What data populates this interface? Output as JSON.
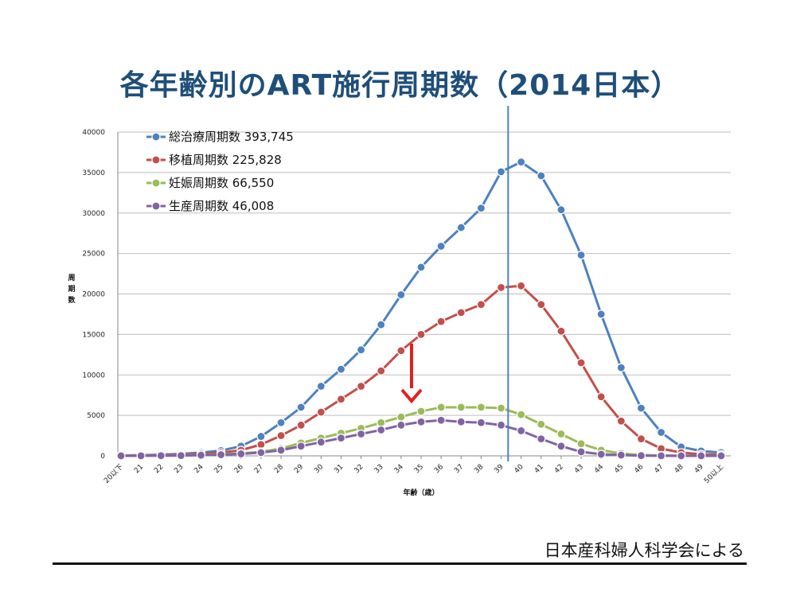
{
  "page": {
    "source": "日本産科婦人科学会による"
  },
  "chart_data": {
    "type": "line",
    "title": "各年齢別のART施行周期数（2014日本）",
    "xlabel": "年齢（歳）",
    "ylabel": "周期数",
    "ylim": [
      0,
      40000
    ],
    "yticks": [
      0,
      5000,
      10000,
      15000,
      20000,
      25000,
      30000,
      35000,
      40000
    ],
    "grid": true,
    "legend_position": "top-left",
    "categories": [
      "20以下",
      "21",
      "22",
      "23",
      "24",
      "25",
      "26",
      "27",
      "28",
      "29",
      "30",
      "31",
      "32",
      "33",
      "34",
      "35",
      "36",
      "37",
      "38",
      "39",
      "40",
      "41",
      "42",
      "43",
      "44",
      "45",
      "46",
      "47",
      "48",
      "49",
      "50以上"
    ],
    "vertical_marker": {
      "after_category": "39",
      "color": "#4f81bd"
    },
    "arrow_annotation": {
      "at_category": "35",
      "color": "#e02020"
    },
    "series": [
      {
        "name": "総治療周期数 393,745",
        "color": "#4f81bd",
        "values": [
          50,
          80,
          150,
          250,
          400,
          650,
          1200,
          2400,
          4100,
          6000,
          8600,
          10700,
          13100,
          16200,
          19900,
          23300,
          25900,
          28200,
          30600,
          35100,
          36300,
          34600,
          30400,
          24800,
          17500,
          10900,
          5900,
          2900,
          1100,
          600,
          400
        ]
      },
      {
        "name": "移植周期数 225,828",
        "color": "#c0504d",
        "values": [
          30,
          50,
          100,
          150,
          250,
          400,
          700,
          1400,
          2500,
          3800,
          5400,
          7000,
          8600,
          10500,
          13000,
          15000,
          16600,
          17700,
          18700,
          20800,
          21000,
          18700,
          15400,
          11500,
          7300,
          4300,
          2100,
          900,
          400,
          200,
          150
        ]
      },
      {
        "name": "妊娠周期数 66,550",
        "color": "#9bbb59",
        "values": [
          10,
          20,
          30,
          60,
          100,
          200,
          300,
          500,
          900,
          1600,
          2200,
          2800,
          3400,
          4100,
          4800,
          5500,
          6000,
          6000,
          6000,
          5900,
          5100,
          3900,
          2700,
          1500,
          700,
          300,
          100,
          50,
          20,
          10,
          10
        ]
      },
      {
        "name": "生産周期数 46,008",
        "color": "#8064a2",
        "values": [
          5,
          10,
          20,
          40,
          80,
          150,
          250,
          400,
          700,
          1200,
          1700,
          2200,
          2700,
          3200,
          3800,
          4200,
          4400,
          4200,
          4100,
          3800,
          3100,
          2100,
          1200,
          500,
          200,
          100,
          30,
          10,
          5,
          5,
          5
        ]
      }
    ]
  }
}
